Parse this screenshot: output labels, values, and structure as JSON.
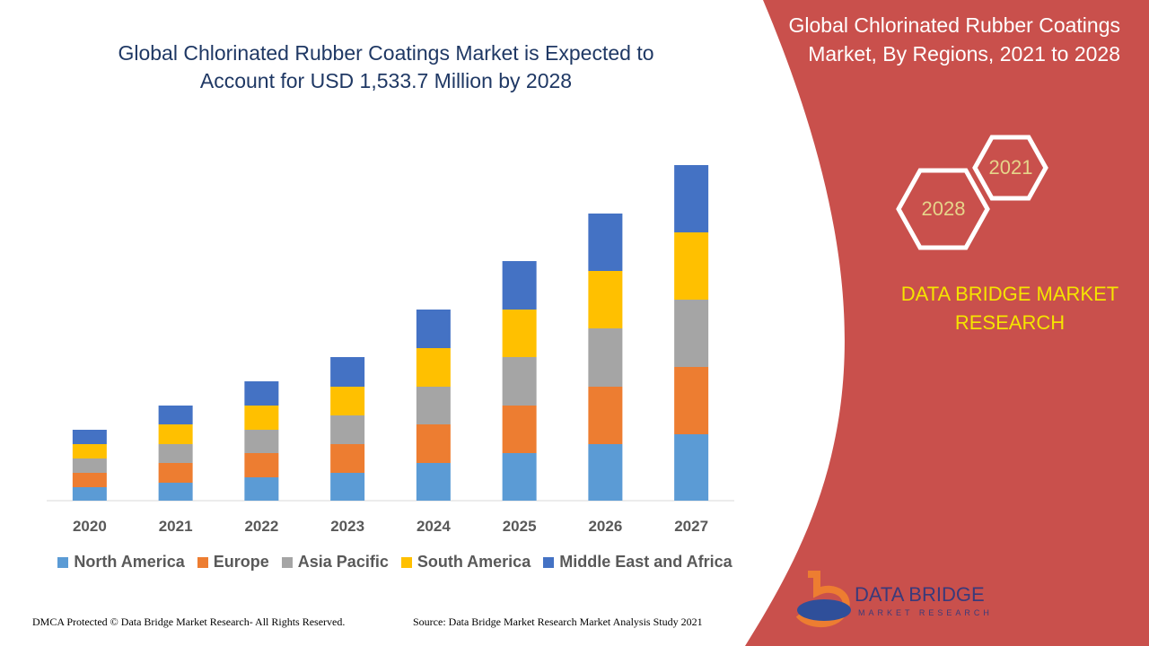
{
  "chart_data": {
    "type": "stacked_bar",
    "title": "Global Chlorinated Rubber Coatings Market is Expected to Account for USD 1,533.7 Million by 2028",
    "categories": [
      "2020",
      "2021",
      "2022",
      "2023",
      "2024",
      "2025",
      "2026",
      "2027"
    ],
    "series": [
      {
        "name": "North America",
        "color": "#5b9bd5",
        "values": [
          15,
          20,
          26,
          31,
          42,
          53,
          63,
          74
        ]
      },
      {
        "name": "Europe",
        "color": "#ed7d31",
        "values": [
          16,
          22,
          27,
          32,
          43,
          53,
          64,
          75
        ]
      },
      {
        "name": "Asia Pacific",
        "color": "#a5a5a5",
        "values": [
          16,
          21,
          26,
          32,
          42,
          54,
          65,
          75
        ]
      },
      {
        "name": "South America",
        "color": "#ffc000",
        "values": [
          16,
          22,
          27,
          32,
          43,
          53,
          64,
          75
        ]
      },
      {
        "name": "Middle East and Africa",
        "color": "#4472c4",
        "values": [
          16,
          21,
          27,
          33,
          43,
          54,
          64,
          75
        ]
      }
    ],
    "legend": "bottom"
  },
  "panel": {
    "title": "Global Chlorinated Rubber Coatings Market, By Regions, 2021 to 2028",
    "hex_start": "2021",
    "hex_end": "2028",
    "brand": "DATA BRIDGE MARKET RESEARCH"
  },
  "logo": {
    "name": "DATA BRIDGE",
    "tagline": "MARKET RESEARCH"
  },
  "footer": {
    "copyright": "DMCA Protected © Data Bridge Market Research- All Rights Reserved.",
    "source": "Source: Data Bridge Market Research Market Analysis Study 2021"
  }
}
